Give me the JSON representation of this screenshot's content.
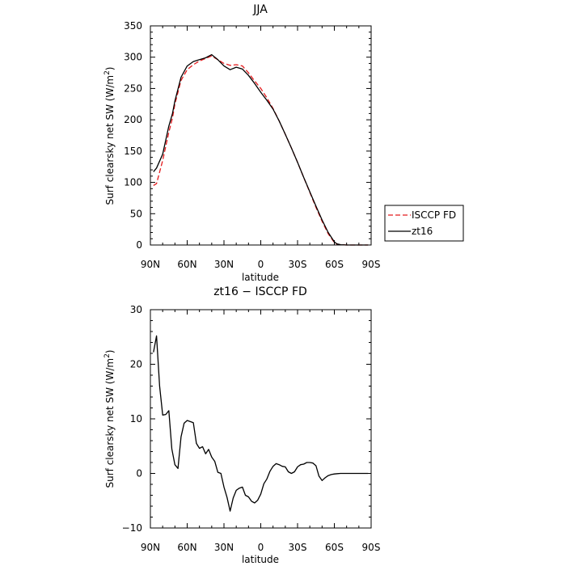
{
  "chart_data": [
    {
      "type": "line",
      "title": "JJA",
      "xlabel": "latitude",
      "ylabel": "Surf clearsky net SW (W/m²)",
      "ylabel_main": "Surf clearsky net SW (W/m",
      "ylabel_sup": "2",
      "ylabel_end": ")",
      "xlim": [
        90,
        -90
      ],
      "ylim": [
        0,
        350
      ],
      "x_ticks": [
        90,
        60,
        30,
        0,
        -30,
        -60,
        -90
      ],
      "x_tick_labels": [
        "90N",
        "60N",
        "30N",
        "0",
        "30S",
        "60S",
        "90S"
      ],
      "y_ticks": [
        0,
        50,
        100,
        150,
        200,
        250,
        300,
        350
      ],
      "y_tick_labels": [
        "0",
        "50",
        "100",
        "150",
        "200",
        "250",
        "300",
        "350"
      ],
      "legend_position": "right",
      "series": [
        {
          "name": "ISCCP FD",
          "color": "#e41a1c",
          "dash": "dashed",
          "x": [
            87.5,
            85,
            80,
            75,
            72,
            70,
            65,
            60,
            55,
            50,
            45,
            40,
            35,
            30,
            25,
            20,
            15,
            10,
            5,
            0,
            -5,
            -10,
            -15,
            -20,
            -25,
            -30,
            -35,
            -40,
            -45,
            -50,
            -55,
            -60,
            -62,
            -65,
            -70,
            -75,
            -80,
            -85,
            -87.5
          ],
          "y": [
            95,
            98,
            135,
            180,
            203,
            225,
            263,
            280,
            288,
            294,
            298,
            302,
            296,
            290,
            287,
            288,
            286,
            275,
            262,
            250,
            235,
            218,
            198,
            177,
            155,
            132,
            108,
            84,
            60,
            38,
            18,
            4,
            1.5,
            0.5,
            0,
            0,
            0,
            0,
            0
          ]
        },
        {
          "name": "zt16",
          "color": "#000000",
          "dash": "solid",
          "x": [
            87.5,
            85,
            80,
            75,
            72,
            70,
            65,
            60,
            55,
            50,
            45,
            40,
            35,
            30,
            25,
            20,
            15,
            10,
            5,
            0,
            -5,
            -10,
            -15,
            -20,
            -25,
            -30,
            -35,
            -40,
            -45,
            -50,
            -55,
            -60,
            -62,
            -65,
            -70,
            -75,
            -80,
            -85,
            -87.5
          ],
          "y": [
            117,
            123,
            145,
            190,
            210,
            230,
            268,
            286,
            293,
            296,
            299,
            304,
            296,
            286,
            280,
            284,
            281,
            271,
            258,
            244,
            231,
            217,
            198,
            177,
            155,
            132,
            108,
            85,
            62,
            40,
            20,
            5,
            2,
            0.5,
            0,
            0,
            0,
            0,
            0
          ]
        }
      ]
    },
    {
      "type": "line",
      "title": "zt16 − ISCCP FD",
      "xlabel": "latitude",
      "ylabel": "Surf clearsky net SW (W/m²)",
      "ylabel_main": "Surf clearsky net SW (W/m",
      "ylabel_sup": "2",
      "ylabel_end": ")",
      "xlim": [
        90,
        -90
      ],
      "ylim": [
        -10,
        30
      ],
      "x_ticks": [
        90,
        60,
        30,
        0,
        -30,
        -60,
        -90
      ],
      "x_tick_labels": [
        "90N",
        "60N",
        "30N",
        "0",
        "30S",
        "60S",
        "90S"
      ],
      "y_ticks": [
        -10,
        0,
        10,
        20,
        30
      ],
      "y_tick_labels": [
        "−10",
        "0",
        "10",
        "20",
        "30"
      ],
      "series": [
        {
          "color": "#000000",
          "dash": "solid",
          "x": [
            87.5,
            85,
            82.5,
            80,
            77.5,
            75,
            72.5,
            70,
            67.5,
            65,
            62.5,
            60,
            57.5,
            55,
            52.5,
            50,
            47.5,
            45,
            42.5,
            40,
            37.5,
            35,
            32.5,
            30,
            27.5,
            25,
            22.5,
            20,
            17.5,
            15,
            12.5,
            10,
            7.5,
            5,
            2.5,
            0,
            -2.5,
            -5,
            -7.5,
            -10,
            -12.5,
            -15,
            -17.5,
            -20,
            -22.5,
            -25,
            -27.5,
            -30,
            -32.5,
            -35,
            -37.5,
            -40,
            -42.5,
            -45,
            -47.5,
            -50,
            -52.5,
            -55,
            -57.5,
            -60,
            -62.5,
            -65,
            -67.5,
            -70,
            -72.5,
            -75,
            -80,
            -85,
            -87.5
          ],
          "y": [
            22.2,
            25.2,
            16,
            10.7,
            10.8,
            11.5,
            4.5,
            1.6,
            0.9,
            6.7,
            9.2,
            9.7,
            9.5,
            9.3,
            5.5,
            4.6,
            4.9,
            3.6,
            4.4,
            3,
            2.2,
            0.2,
            0,
            -2.5,
            -4.4,
            -6.9,
            -4.5,
            -3.1,
            -2.7,
            -2.5,
            -4,
            -4.3,
            -5.1,
            -5.4,
            -4.9,
            -3.8,
            -1.9,
            -1,
            0.4,
            1.3,
            1.8,
            1.6,
            1.3,
            1.2,
            0.3,
            0,
            0.3,
            1.2,
            1.6,
            1.7,
            2,
            2,
            1.9,
            1.4,
            -0.5,
            -1.3,
            -0.8,
            -0.4,
            -0.2,
            -0.1,
            -0.05,
            0,
            0,
            0,
            0,
            0,
            0,
            0,
            0
          ]
        }
      ]
    }
  ]
}
